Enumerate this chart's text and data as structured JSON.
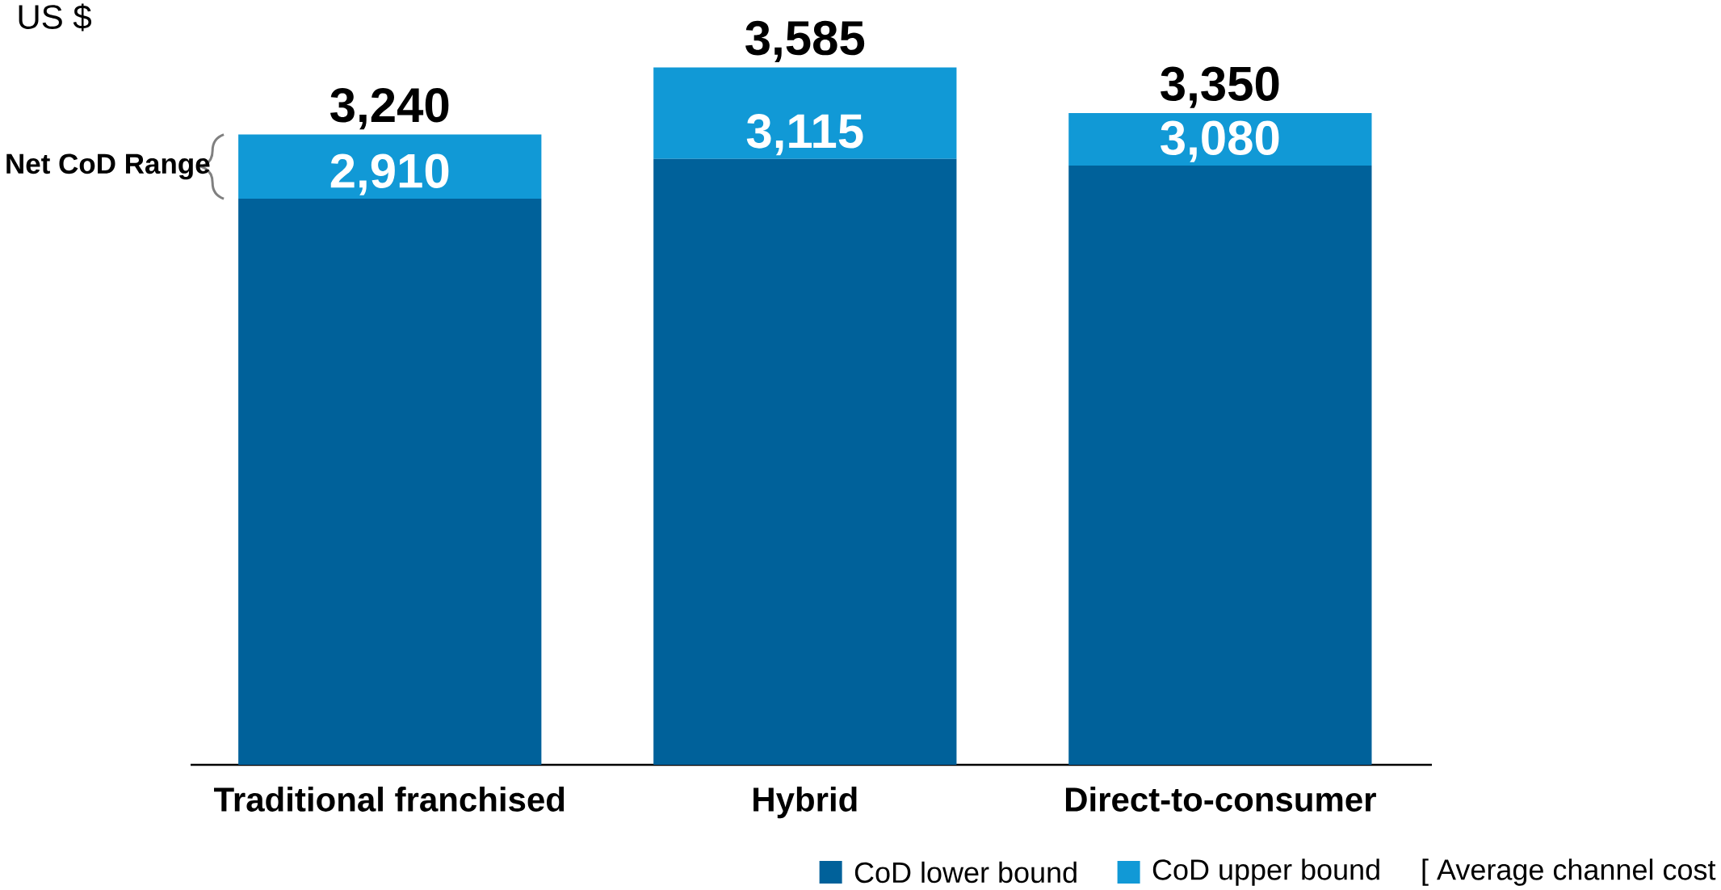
{
  "chart_data": {
    "type": "bar",
    "stacked": true,
    "categories": [
      "Traditional franchised",
      "Hybrid",
      "Direct-to-consumer"
    ],
    "series": [
      {
        "name": "CoD lower bound",
        "color": "#00619a",
        "values": [
          2910,
          3115,
          3080
        ],
        "value_labels": [
          "2,910",
          "3,115",
          "3,080"
        ]
      },
      {
        "name": "CoD upper bound",
        "color": "#1199d6",
        "values": [
          330,
          470,
          270
        ]
      }
    ],
    "totals": [
      "3,240",
      "3,585",
      "3,350"
    ],
    "legend": "bottom right",
    "grid": false,
    "annotations": [
      "US $",
      "Net CoD Range",
      "[ Average channel cost"
    ]
  }
}
